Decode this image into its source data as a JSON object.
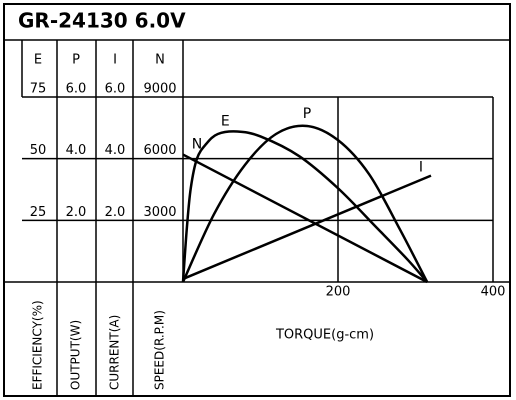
{
  "chart_data": {
    "type": "line",
    "title": "GR-24130 6.0V",
    "xlabel": "TORQUE(g-cm)",
    "xlim": [
      0,
      400
    ],
    "xticks": [
      200,
      400
    ],
    "axes": [
      {
        "label": "E",
        "name": "EFFICIENCY(%)",
        "ylim": [
          0,
          75
        ],
        "yticks": [
          25,
          50,
          75
        ]
      },
      {
        "label": "P",
        "name": "OUTPUT(W)",
        "ylim": [
          0,
          6
        ],
        "yticks": [
          {
            "value": 2,
            "label": "2.0"
          },
          {
            "value": 4,
            "label": "4.0"
          },
          {
            "value": 6,
            "label": "6.0"
          }
        ]
      },
      {
        "label": "I",
        "name": "CURRENT(A)",
        "ylim": [
          0,
          6
        ],
        "yticks": [
          {
            "value": 2,
            "label": "2.0"
          },
          {
            "value": 4,
            "label": "4.0"
          },
          {
            "value": 6,
            "label": "6.0"
          }
        ]
      },
      {
        "label": "N",
        "name": "SPEED(R.P.M)",
        "ylim": [
          0,
          9000
        ],
        "yticks": [
          3000,
          6000,
          9000
        ]
      }
    ],
    "grid": true,
    "series": [
      {
        "name": "E",
        "color": "#000000",
        "axis": 0,
        "x": [
          0,
          5,
          10,
          18,
          30,
          45,
          70,
          100,
          150,
          200,
          250,
          290,
          315
        ],
        "values": [
          0,
          22,
          38,
          50,
          56,
          60,
          61,
          59,
          51,
          38,
          22,
          9,
          0
        ]
      },
      {
        "name": "P",
        "color": "#000000",
        "axis": 1,
        "x": [
          0,
          40,
          80,
          120,
          160,
          200,
          240,
          280,
          315
        ],
        "values": [
          0,
          2.2,
          3.8,
          4.8,
          5.06,
          4.6,
          3.5,
          1.7,
          0
        ]
      },
      {
        "name": "I",
        "color": "#000000",
        "axis": 2,
        "x": [
          0,
          320
        ],
        "values": [
          0.1,
          3.45
        ]
      },
      {
        "name": "N",
        "color": "#000000",
        "axis": 3,
        "x": [
          0,
          315
        ],
        "values": [
          6200,
          0
        ]
      }
    ]
  }
}
